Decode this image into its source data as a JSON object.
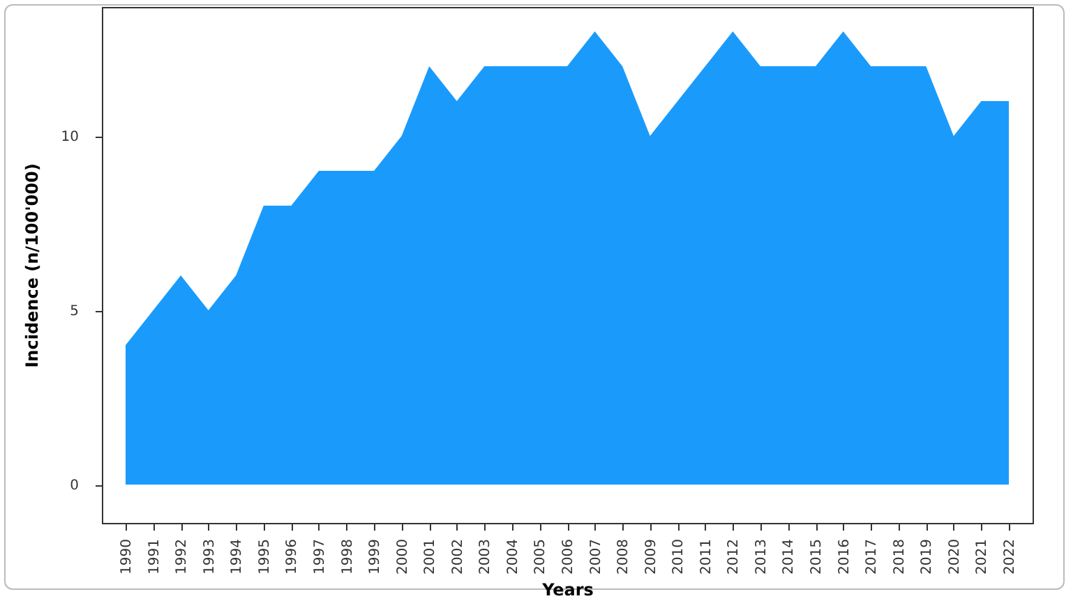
{
  "chart_data": {
    "type": "area",
    "xlabel": "Years",
    "ylabel": "Incidence (n/100'000)",
    "categories": [
      "1990",
      "1991",
      "1992",
      "1993",
      "1994",
      "1995",
      "1996",
      "1997",
      "1998",
      "1999",
      "2000",
      "2001",
      "2002",
      "2003",
      "2004",
      "2005",
      "2006",
      "2007",
      "2008",
      "2009",
      "2010",
      "2011",
      "2012",
      "2013",
      "2014",
      "2015",
      "2016",
      "2017",
      "2018",
      "2019",
      "2020",
      "2021",
      "2022"
    ],
    "series": [
      {
        "color": "#1a9bfc",
        "values": [
          4,
          5,
          6,
          5,
          6,
          8,
          8,
          9,
          9,
          9,
          10,
          12,
          11,
          12,
          12,
          12,
          12,
          13,
          12,
          10,
          11,
          12,
          13,
          12,
          12,
          12,
          13,
          12,
          12,
          12,
          10,
          11,
          11
        ]
      }
    ],
    "ylim": [
      -1.1,
      13.7
    ],
    "yticks": [
      0,
      5,
      10
    ],
    "grid": false
  }
}
